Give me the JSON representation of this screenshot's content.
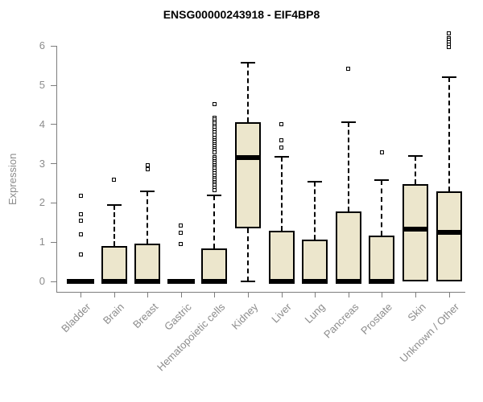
{
  "title": "ENSG00000243918 - EIF4BP8",
  "chart_data": {
    "type": "boxplot",
    "title": "ENSG00000243918 - EIF4BP8",
    "xlabel": "",
    "ylabel": "Expression",
    "ylim": [
      0,
      6.4
    ],
    "yticks": [
      0,
      1,
      2,
      3,
      4,
      5,
      6
    ],
    "grid": false,
    "box_fill_color": "#ece6cc",
    "box_line_color": "#000000",
    "axis_text_color": "#8c8c8c",
    "categories": [
      "Bladder",
      "Brain",
      "Breast",
      "Gastric",
      "Hematopoietic cells",
      "Kidney",
      "Liver",
      "Lung",
      "Pancreas",
      "Prostate",
      "Skin",
      "Unknown / Other"
    ],
    "series": [
      {
        "name": "Bladder",
        "whisker_low": 0,
        "q1": 0,
        "median": 0,
        "q3": 0,
        "whisker_high": 0,
        "outliers": [
          2.19,
          1.71,
          1.54,
          1.19,
          0.68
        ]
      },
      {
        "name": "Brain",
        "whisker_low": 0,
        "q1": 0,
        "median": 0,
        "q3": 0.91,
        "whisker_high": 1.95,
        "outliers": [
          2.6
        ]
      },
      {
        "name": "Breast",
        "whisker_low": 0,
        "q1": 0,
        "median": 0,
        "q3": 0.96,
        "whisker_high": 2.29,
        "outliers": [
          2.96,
          2.85
        ]
      },
      {
        "name": "Gastric",
        "whisker_low": 0,
        "q1": 0,
        "median": 0,
        "q3": 0,
        "whisker_high": 0,
        "outliers": [
          1.43,
          1.23,
          0.96
        ]
      },
      {
        "name": "Hematopoietic cells",
        "whisker_low": 0,
        "q1": 0,
        "median": 0,
        "q3": 0.84,
        "whisker_high": 2.19,
        "outliers": [
          4.51,
          4.17,
          4.12,
          4.07,
          4.02,
          3.97,
          3.92,
          3.86,
          3.8,
          3.74,
          3.65,
          3.6,
          3.55,
          3.5,
          3.45,
          3.4,
          3.35,
          3.28,
          3.17,
          3.12,
          3.07,
          3.02,
          2.97,
          2.92,
          2.87,
          2.82,
          2.76,
          2.69,
          2.64,
          2.59,
          2.54,
          2.49,
          2.44,
          2.39,
          2.32
        ]
      },
      {
        "name": "Kidney",
        "whisker_low": 0,
        "q1": 1.35,
        "median": 3.16,
        "q3": 4.05,
        "whisker_high": 5.57,
        "outliers": []
      },
      {
        "name": "Liver",
        "whisker_low": 0,
        "q1": 0,
        "median": 0,
        "q3": 1.3,
        "whisker_high": 3.18,
        "outliers": [
          4.0,
          3.59,
          3.42
        ]
      },
      {
        "name": "Lung",
        "whisker_low": 0,
        "q1": 0,
        "median": 0,
        "q3": 1.06,
        "whisker_high": 2.54,
        "outliers": []
      },
      {
        "name": "Pancreas",
        "whisker_low": 0,
        "q1": 0,
        "median": 0,
        "q3": 1.78,
        "whisker_high": 4.06,
        "outliers": [
          5.43
        ]
      },
      {
        "name": "Prostate",
        "whisker_low": 0,
        "q1": 0,
        "median": 0,
        "q3": 1.16,
        "whisker_high": 2.58,
        "outliers": [
          3.28
        ]
      },
      {
        "name": "Skin",
        "whisker_low": 0,
        "q1": 0,
        "median": 1.33,
        "q3": 2.47,
        "whisker_high": 3.2,
        "outliers": []
      },
      {
        "name": "Unknown / Other",
        "whisker_low": 0,
        "q1": 0,
        "median": 1.26,
        "q3": 2.29,
        "whisker_high": 5.21,
        "outliers": [
          6.32,
          6.2,
          6.15,
          6.1,
          6.04,
          5.97
        ]
      }
    ]
  }
}
